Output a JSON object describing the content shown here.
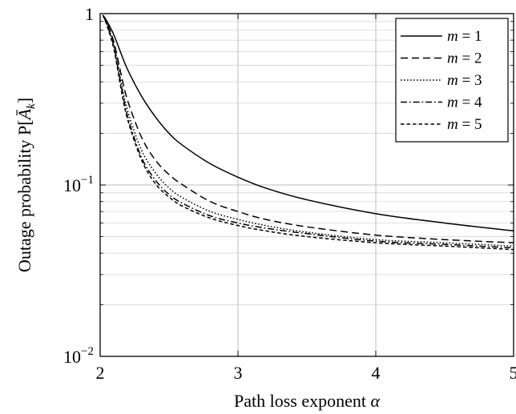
{
  "chart_data": {
    "type": "line",
    "xlabel": "Path loss exponent α",
    "ylabel": "Outage probability P[Āk]",
    "xlim": [
      2,
      5
    ],
    "ylim": [
      0.01,
      1
    ],
    "yscale": "log",
    "grid": true,
    "legend_position": "top-right",
    "x_ticks": [
      2,
      3,
      4,
      5
    ],
    "x_tick_labels": [
      "2",
      "3",
      "4",
      "5"
    ],
    "y_ticks": [
      0.01,
      0.1,
      1
    ],
    "y_tick_labels": [
      {
        "base": "10",
        "exp": "−2"
      },
      {
        "base": "10",
        "exp": "−1"
      },
      {
        "base": "1",
        "exp": ""
      }
    ],
    "x": [
      2.02,
      2.05,
      2.1,
      2.15,
      2.2,
      2.3,
      2.4,
      2.5,
      2.6,
      2.8,
      3.0,
      3.2,
      3.5,
      4.0,
      4.5,
      5.0
    ],
    "series": [
      {
        "name": "m = 1",
        "label_var": "m",
        "label_op": " = 1",
        "dash": "solid",
        "values": [
          0.98,
          0.9,
          0.75,
          0.59,
          0.47,
          0.33,
          0.25,
          0.2,
          0.17,
          0.133,
          0.111,
          0.096,
          0.082,
          0.068,
          0.06,
          0.054
        ]
      },
      {
        "name": "m = 2",
        "label_var": "m",
        "label_op": " = 2",
        "dash": "dashed",
        "values": [
          0.98,
          0.88,
          0.68,
          0.45,
          0.31,
          0.19,
          0.14,
          0.115,
          0.1,
          0.08,
          0.07,
          0.063,
          0.057,
          0.051,
          0.048,
          0.046
        ]
      },
      {
        "name": "m = 3",
        "label_var": "m",
        "label_op": " = 3",
        "dash": "dotted",
        "values": [
          0.98,
          0.87,
          0.66,
          0.41,
          0.27,
          0.16,
          0.118,
          0.096,
          0.084,
          0.07,
          0.063,
          0.058,
          0.053,
          0.048,
          0.046,
          0.044
        ]
      },
      {
        "name": "m = 4",
        "label_var": "m",
        "label_op": " = 4",
        "dash": "dashdot",
        "values": [
          0.98,
          0.86,
          0.64,
          0.39,
          0.25,
          0.145,
          0.107,
          0.088,
          0.078,
          0.066,
          0.06,
          0.056,
          0.052,
          0.047,
          0.045,
          0.043
        ]
      },
      {
        "name": "m = 5",
        "label_var": "m",
        "label_op": " = 5",
        "dash": "densedash",
        "values": [
          0.98,
          0.85,
          0.62,
          0.37,
          0.24,
          0.14,
          0.102,
          0.085,
          0.075,
          0.064,
          0.058,
          0.054,
          0.05,
          0.046,
          0.044,
          0.042
        ]
      }
    ]
  }
}
